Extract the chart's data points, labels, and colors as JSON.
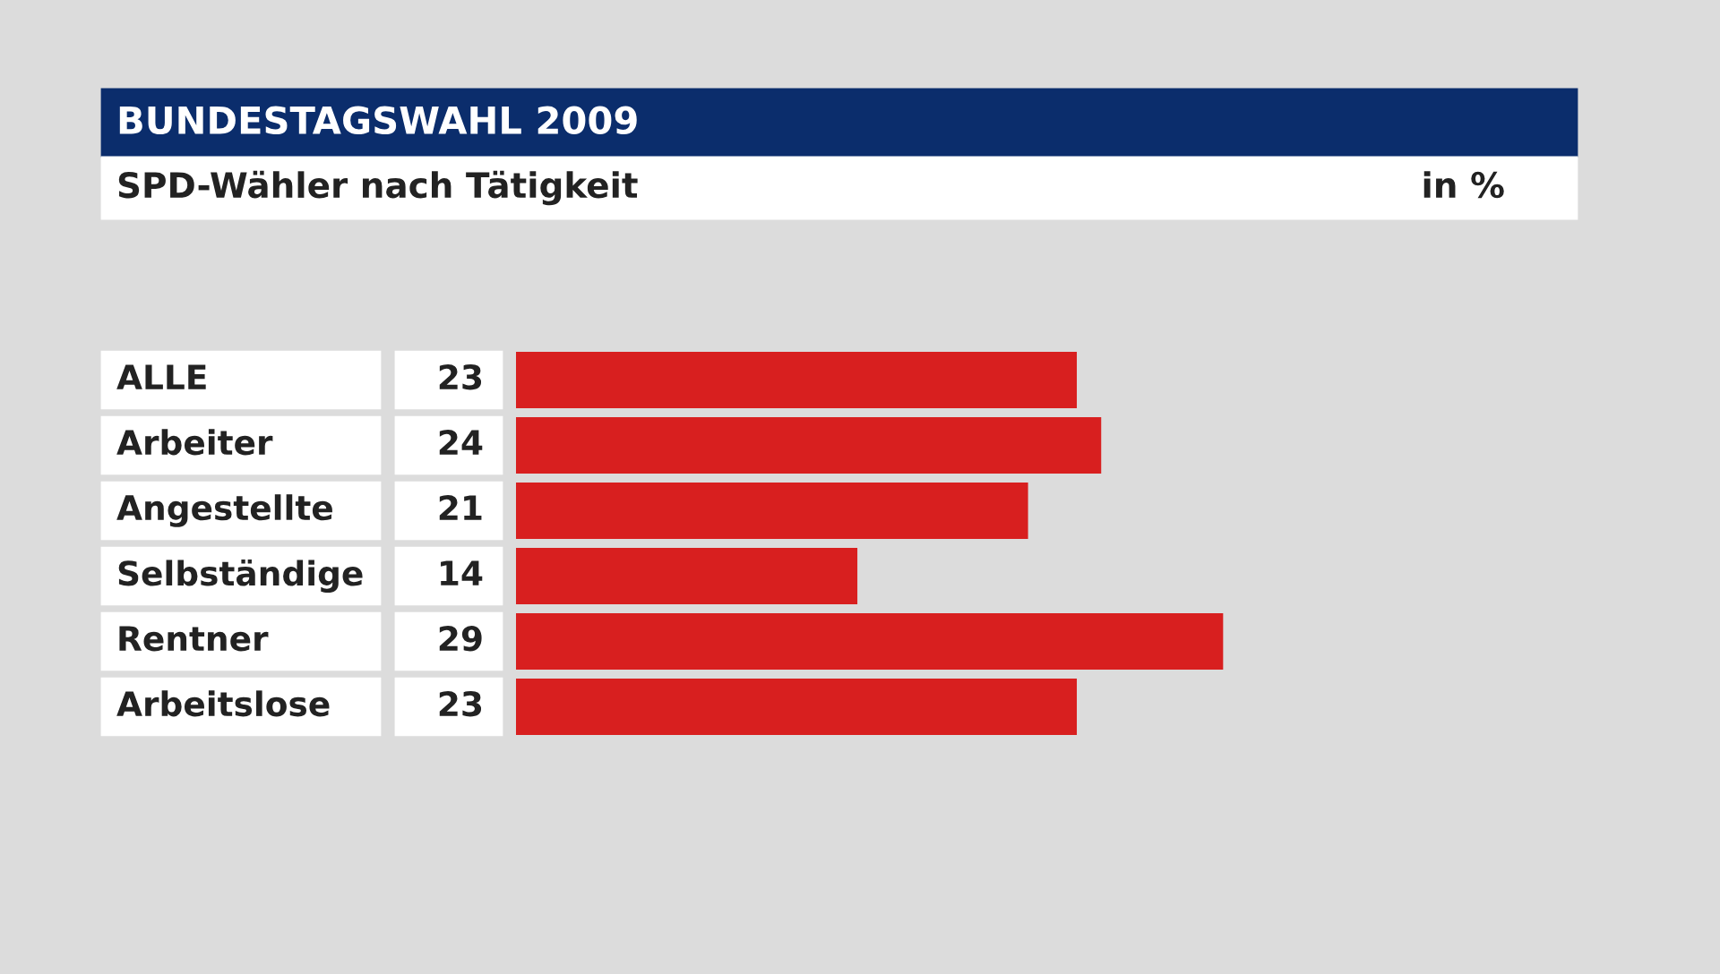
{
  "chart_data": {
    "type": "bar",
    "orientation": "horizontal",
    "title": "BUNDESTAGSWAHL 2009",
    "subtitle": "SPD-Wähler nach Tätigkeit",
    "annotations": [
      "in %"
    ],
    "categories": [
      "ALLE",
      "Arbeiter",
      "Angestellte",
      "Selbständige",
      "Rentner",
      "Arbeitslose"
    ],
    "values": [
      23,
      24,
      21,
      14,
      29,
      23
    ],
    "color": "#d81f1f",
    "data_labels": true
  }
}
